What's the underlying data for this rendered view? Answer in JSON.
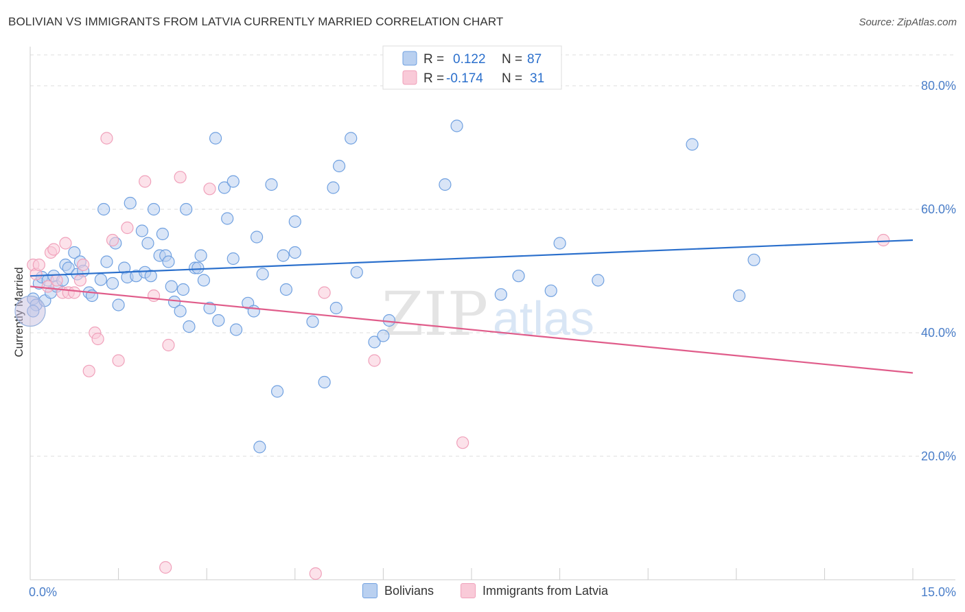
{
  "title": "BOLIVIAN VS IMMIGRANTS FROM LATVIA CURRENTLY MARRIED CORRELATION CHART",
  "source": "Source: ZipAtlas.com",
  "watermark": {
    "zip": "ZIP",
    "atlas": "atlas"
  },
  "chart_data": {
    "type": "scatter",
    "ylabel": "Currently Married",
    "xlim": [
      0,
      15
    ],
    "ylim": [
      0,
      85
    ],
    "x_tick_labels": [
      "0.0%",
      "15.0%"
    ],
    "y_ticks": [
      20,
      40,
      60,
      80
    ],
    "y_tick_labels": [
      "20.0%",
      "40.0%",
      "60.0%",
      "80.0%"
    ],
    "grid": true,
    "legend_placement": "top-center",
    "series": [
      {
        "name": "Bolivians",
        "color": "#6fa0e0",
        "fill": "#b9d0f0",
        "line_color": "#2a6fcc",
        "R": "0.122",
        "N": "87",
        "trend": [
          [
            0,
            49.2
          ],
          [
            15,
            55.0
          ]
        ],
        "points": [
          [
            0.05,
            45.5
          ],
          [
            0.1,
            44.5
          ],
          [
            0.15,
            48.0
          ],
          [
            0.2,
            49.0
          ],
          [
            0.25,
            45.2
          ],
          [
            0.3,
            48.5
          ],
          [
            0.35,
            46.5
          ],
          [
            0.4,
            49.2
          ],
          [
            0.45,
            47.5
          ],
          [
            0.55,
            48.5
          ],
          [
            0.6,
            51.0
          ],
          [
            0.65,
            50.5
          ],
          [
            0.75,
            53.0
          ],
          [
            0.8,
            49.5
          ],
          [
            0.85,
            51.5
          ],
          [
            0.9,
            50.0
          ],
          [
            1.0,
            46.5
          ],
          [
            1.05,
            46.0
          ],
          [
            1.25,
            60.0
          ],
          [
            1.3,
            51.5
          ],
          [
            1.4,
            48.0
          ],
          [
            1.45,
            54.5
          ],
          [
            1.5,
            44.5
          ],
          [
            1.6,
            50.5
          ],
          [
            1.65,
            49.0
          ],
          [
            1.7,
            61.0
          ],
          [
            1.8,
            49.2
          ],
          [
            1.9,
            56.5
          ],
          [
            1.95,
            49.8
          ],
          [
            2.0,
            54.5
          ],
          [
            2.05,
            49.2
          ],
          [
            2.1,
            60.0
          ],
          [
            2.2,
            52.5
          ],
          [
            2.25,
            56.0
          ],
          [
            2.3,
            52.5
          ],
          [
            2.35,
            51.5
          ],
          [
            2.4,
            47.5
          ],
          [
            2.45,
            45.0
          ],
          [
            2.55,
            43.5
          ],
          [
            2.6,
            47.0
          ],
          [
            2.65,
            60.0
          ],
          [
            2.7,
            41.0
          ],
          [
            2.8,
            50.5
          ],
          [
            2.85,
            50.5
          ],
          [
            2.9,
            52.5
          ],
          [
            2.95,
            48.5
          ],
          [
            3.05,
            44.0
          ],
          [
            3.15,
            71.5
          ],
          [
            3.2,
            42.0
          ],
          [
            3.3,
            63.5
          ],
          [
            3.35,
            58.5
          ],
          [
            3.45,
            52.0
          ],
          [
            3.45,
            64.5
          ],
          [
            3.5,
            40.5
          ],
          [
            3.7,
            44.8
          ],
          [
            3.8,
            43.5
          ],
          [
            3.85,
            55.5
          ],
          [
            3.95,
            49.5
          ],
          [
            4.1,
            64.0
          ],
          [
            4.2,
            30.5
          ],
          [
            4.3,
            52.5
          ],
          [
            4.35,
            47.0
          ],
          [
            4.5,
            58.0
          ],
          [
            4.5,
            53.0
          ],
          [
            4.8,
            41.8
          ],
          [
            5.0,
            32.0
          ],
          [
            5.15,
            63.5
          ],
          [
            5.2,
            44.0
          ],
          [
            5.25,
            67.0
          ],
          [
            5.45,
            71.5
          ],
          [
            5.55,
            49.8
          ],
          [
            5.85,
            38.5
          ],
          [
            6.0,
            39.5
          ],
          [
            6.1,
            42.0
          ],
          [
            7.05,
            64.0
          ],
          [
            7.25,
            73.5
          ],
          [
            8.0,
            46.2
          ],
          [
            8.3,
            49.2
          ],
          [
            8.85,
            46.8
          ],
          [
            9.0,
            54.5
          ],
          [
            9.65,
            48.5
          ],
          [
            11.25,
            70.5
          ],
          [
            12.05,
            46.0
          ],
          [
            12.3,
            51.8
          ],
          [
            0.05,
            43.5
          ],
          [
            1.2,
            48.6
          ],
          [
            3.9,
            21.5
          ]
        ]
      },
      {
        "name": "Immigrants from Latvia",
        "color": "#f0a0ba",
        "fill": "#f9cad8",
        "line_color": "#e05c8a",
        "R": "-0.174",
        "N": "31",
        "trend": [
          [
            0,
            47.5
          ],
          [
            15,
            33.5
          ]
        ],
        "points": [
          [
            0.05,
            51.0
          ],
          [
            0.1,
            49.5
          ],
          [
            0.15,
            51.0
          ],
          [
            0.3,
            47.5
          ],
          [
            0.35,
            53.0
          ],
          [
            0.4,
            53.5
          ],
          [
            0.45,
            48.5
          ],
          [
            0.55,
            46.5
          ],
          [
            0.6,
            54.5
          ],
          [
            0.65,
            46.5
          ],
          [
            0.75,
            46.5
          ],
          [
            0.85,
            48.5
          ],
          [
            0.9,
            51.0
          ],
          [
            1.0,
            33.8
          ],
          [
            1.1,
            40.0
          ],
          [
            1.15,
            39.0
          ],
          [
            1.3,
            71.5
          ],
          [
            1.4,
            55.0
          ],
          [
            1.5,
            35.5
          ],
          [
            1.65,
            57.0
          ],
          [
            1.95,
            64.5
          ],
          [
            2.1,
            46.0
          ],
          [
            2.3,
            2.0
          ],
          [
            2.35,
            38.0
          ],
          [
            2.55,
            65.2
          ],
          [
            3.05,
            63.3
          ],
          [
            4.85,
            1.0
          ],
          [
            5.0,
            46.5
          ],
          [
            5.85,
            35.5
          ],
          [
            7.35,
            22.2
          ],
          [
            14.5,
            55.0
          ]
        ]
      }
    ]
  },
  "legend": {
    "r_label": "R =",
    "n_label": "N =",
    "rows": [
      {
        "r": "0.122",
        "n": "87"
      },
      {
        "r": "-0.174",
        "n": "31"
      }
    ]
  }
}
